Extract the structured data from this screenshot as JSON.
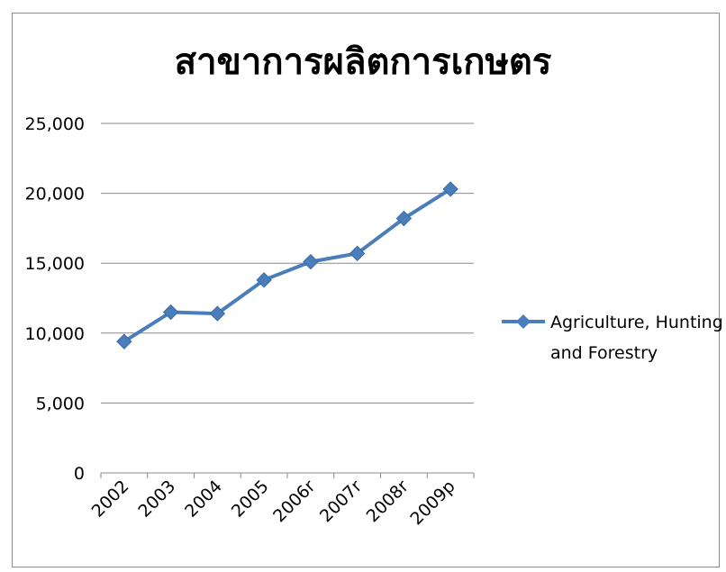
{
  "chart_data": {
    "type": "line",
    "title": "สาขาการผลิตการเกษตร",
    "xlabel": "",
    "ylabel": "",
    "categories": [
      "2002",
      "2003",
      "2004",
      "2005",
      "2006r",
      "2007r",
      "2008r",
      "2009p"
    ],
    "yticks": [
      "0",
      "5,000",
      "10,000",
      "15,000",
      "20,000",
      "25,000"
    ],
    "ylim": [
      0,
      25000
    ],
    "grid": true,
    "legend_position": "right",
    "series": [
      {
        "name": "Agriculture, Hunting and Forestry",
        "legend_lines": [
          "Agriculture, Hunting",
          "and Forestry"
        ],
        "values": [
          9400,
          11500,
          11400,
          13800,
          15100,
          15700,
          18200,
          20300
        ],
        "color": "#4a7ebb",
        "marker": "diamond"
      }
    ]
  }
}
